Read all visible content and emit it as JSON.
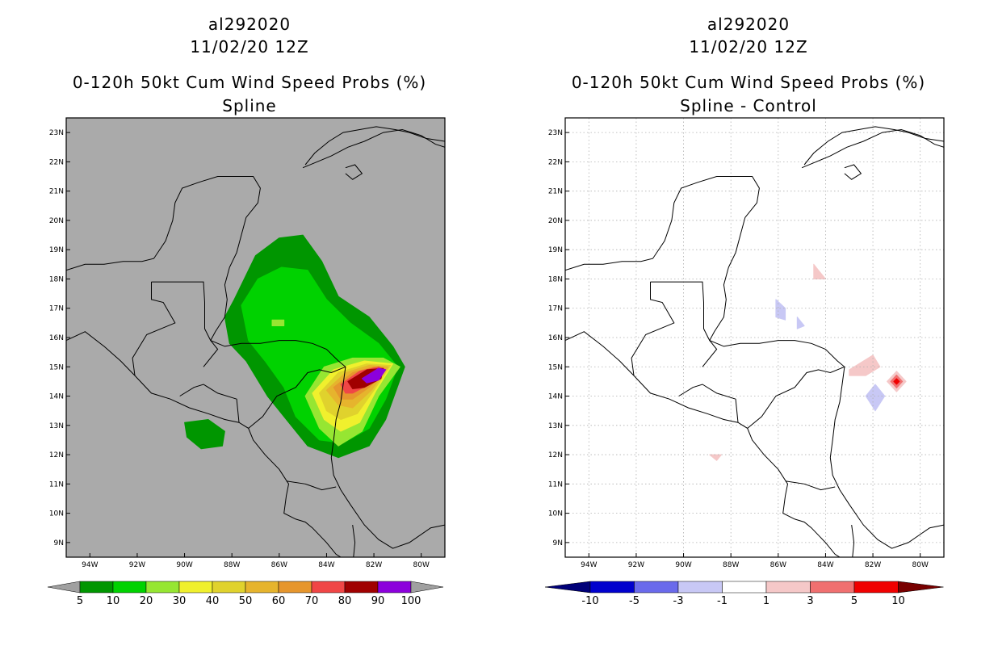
{
  "panels": [
    {
      "id": "spline",
      "storm_id": "al292020",
      "datetime": "11/02/20 12Z",
      "product": "0-120h 50kt Cum Wind Speed Probs (%)",
      "subtitle": "Spline",
      "background": "#aaaaaa",
      "colorbar": {
        "labels": [
          "5",
          "10",
          "20",
          "30",
          "40",
          "50",
          "60",
          "70",
          "80",
          "90",
          "100"
        ],
        "colors": [
          "#009600",
          "#00d200",
          "#96e632",
          "#f0f02d",
          "#e0d22d",
          "#e6b42d",
          "#e6962d",
          "#f04646",
          "#a00000",
          "#8c00dc"
        ],
        "end_color": "#a0a0a0"
      }
    },
    {
      "id": "difference",
      "storm_id": "al292020",
      "datetime": "11/02/20 12Z",
      "product": "0-120h 50kt Cum Wind Speed Probs (%)",
      "subtitle": "Spline - Control",
      "background": "#ffffff",
      "colorbar": {
        "labels": [
          "-10",
          "-5",
          "-3",
          "-1",
          "1",
          "3",
          "5",
          "10"
        ],
        "colors": [
          "#0000cd",
          "#6a6aeb",
          "#c8c8f5",
          "#ffffff",
          "#f5c8c8",
          "#f07070",
          "#f00000"
        ],
        "start_color": "#000078",
        "end_color": "#780000"
      }
    }
  ],
  "chart_data": [
    {
      "type": "heatmap",
      "title": "0-120h 50kt Cum Wind Speed Probs (%) - Spline",
      "xlim": [
        -95,
        -79
      ],
      "ylim": [
        8.5,
        23.5
      ],
      "x_ticks": [
        "94W",
        "92W",
        "90W",
        "88W",
        "86W",
        "84W",
        "82W",
        "80W"
      ],
      "y_ticks": [
        "9N",
        "10N",
        "11N",
        "12N",
        "13N",
        "14N",
        "15N",
        "16N",
        "17N",
        "18N",
        "19N",
        "20N",
        "21N",
        "22N",
        "23N"
      ],
      "contours": [
        {
          "level": 5,
          "color": "#009600",
          "points": [
            [
              -87.9,
              17.3
            ],
            [
              -87.0,
              18.8
            ],
            [
              -86.0,
              19.4
            ],
            [
              -85.0,
              19.5
            ],
            [
              -84.2,
              18.6
            ],
            [
              -83.5,
              17.4
            ],
            [
              -82.2,
              16.7
            ],
            [
              -81.2,
              15.7
            ],
            [
              -80.7,
              15.0
            ],
            [
              -81.1,
              14.1
            ],
            [
              -81.5,
              13.2
            ],
            [
              -82.2,
              12.3
            ],
            [
              -83.5,
              11.9
            ],
            [
              -84.8,
              12.3
            ],
            [
              -85.8,
              13.3
            ],
            [
              -86.5,
              14.0
            ],
            [
              -87.4,
              15.2
            ],
            [
              -88.1,
              15.8
            ],
            [
              -88.3,
              16.7
            ]
          ]
        },
        {
          "level": 10,
          "color": "#00d200",
          "points": [
            [
              -87.6,
              17.1
            ],
            [
              -86.9,
              18.0
            ],
            [
              -85.9,
              18.4
            ],
            [
              -84.8,
              18.3
            ],
            [
              -84.0,
              17.3
            ],
            [
              -83.0,
              16.5
            ],
            [
              -81.8,
              15.8
            ],
            [
              -81.0,
              15.0
            ],
            [
              -81.5,
              13.9
            ],
            [
              -82.2,
              12.9
            ],
            [
              -83.3,
              12.4
            ],
            [
              -84.3,
              12.5
            ],
            [
              -85.3,
              13.3
            ],
            [
              -85.8,
              14.3
            ],
            [
              -86.6,
              15.2
            ],
            [
              -87.3,
              15.9
            ]
          ]
        },
        {
          "level": 20,
          "color": "#96e632",
          "points": [
            [
              -86.3,
              16.4
            ],
            [
              -85.8,
              16.4
            ],
            [
              -85.8,
              16.6
            ],
            [
              -86.3,
              16.6
            ]
          ]
        },
        {
          "level": 5,
          "color": "#009600",
          "points": [
            [
              -90.0,
              13.1
            ],
            [
              -89.0,
              13.2
            ],
            [
              -88.3,
              12.8
            ],
            [
              -88.4,
              12.3
            ],
            [
              -89.3,
              12.2
            ],
            [
              -89.9,
              12.6
            ]
          ]
        },
        {
          "level": 20,
          "color": "#96e632",
          "points": [
            [
              -84.9,
              14.0
            ],
            [
              -84.1,
              15.0
            ],
            [
              -82.9,
              15.3
            ],
            [
              -81.6,
              15.3
            ],
            [
              -80.9,
              15.0
            ],
            [
              -81.8,
              14.0
            ],
            [
              -82.5,
              12.8
            ],
            [
              -83.5,
              12.3
            ],
            [
              -84.3,
              12.9
            ]
          ]
        },
        {
          "level": 30,
          "color": "#f0f02d",
          "points": [
            [
              -84.6,
              14.1
            ],
            [
              -83.7,
              14.9
            ],
            [
              -82.4,
              15.2
            ],
            [
              -81.2,
              15.1
            ],
            [
              -81.9,
              14.2
            ],
            [
              -82.6,
              13.1
            ],
            [
              -83.4,
              12.8
            ],
            [
              -84.1,
              13.2
            ]
          ]
        },
        {
          "level": 40,
          "color": "#e0d22d",
          "points": [
            [
              -84.3,
              14.1
            ],
            [
              -83.5,
              14.8
            ],
            [
              -82.3,
              15.1
            ],
            [
              -81.3,
              15.05
            ],
            [
              -82.0,
              14.2
            ],
            [
              -82.7,
              13.4
            ],
            [
              -83.4,
              13.2
            ],
            [
              -84.0,
              13.5
            ]
          ]
        },
        {
          "level": 50,
          "color": "#e6b42d",
          "points": [
            [
              -84.0,
              14.2
            ],
            [
              -83.2,
              14.8
            ],
            [
              -82.2,
              15.05
            ],
            [
              -81.4,
              15.0
            ],
            [
              -82.1,
              14.2
            ],
            [
              -82.9,
              13.6
            ],
            [
              -83.5,
              13.7
            ]
          ]
        },
        {
          "level": 60,
          "color": "#e6962d",
          "points": [
            [
              -83.7,
              14.3
            ],
            [
              -82.9,
              14.8
            ],
            [
              -82.0,
              15.0
            ],
            [
              -81.5,
              14.9
            ],
            [
              -82.2,
              14.3
            ],
            [
              -82.9,
              13.9
            ],
            [
              -83.4,
              13.9
            ]
          ]
        },
        {
          "level": 70,
          "color": "#f04646",
          "points": [
            [
              -83.4,
              14.4
            ],
            [
              -82.6,
              14.85
            ],
            [
              -81.8,
              15.0
            ],
            [
              -81.5,
              14.9
            ],
            [
              -82.2,
              14.4
            ],
            [
              -82.9,
              14.1
            ],
            [
              -83.2,
              14.1
            ]
          ]
        },
        {
          "level": 80,
          "color": "#a00000",
          "points": [
            [
              -83.1,
              14.5
            ],
            [
              -82.3,
              14.9
            ],
            [
              -81.6,
              14.95
            ],
            [
              -81.7,
              14.6
            ],
            [
              -82.4,
              14.3
            ],
            [
              -82.9,
              14.25
            ]
          ]
        },
        {
          "level": 90,
          "color": "#8c00dc",
          "points": [
            [
              -82.5,
              14.6
            ],
            [
              -81.8,
              14.95
            ],
            [
              -81.5,
              14.9
            ],
            [
              -81.8,
              14.55
            ],
            [
              -82.3,
              14.45
            ]
          ]
        }
      ]
    },
    {
      "type": "heatmap",
      "title": "0-120h 50kt Cum Wind Speed Probs (%) - Spline - Control",
      "xlim": [
        -95,
        -79
      ],
      "ylim": [
        8.5,
        23.5
      ],
      "x_ticks": [
        "94W",
        "92W",
        "90W",
        "88W",
        "86W",
        "84W",
        "82W",
        "80W"
      ],
      "y_ticks": [
        "9N",
        "10N",
        "11N",
        "12N",
        "13N",
        "14N",
        "15N",
        "16N",
        "17N",
        "18N",
        "19N",
        "20N",
        "21N",
        "22N",
        "23N"
      ],
      "contours": [
        {
          "level": 1,
          "color": "#f5c8c8",
          "points": [
            [
              -84.5,
              18.5
            ],
            [
              -84.0,
              18.0
            ],
            [
              -84.5,
              18.0
            ]
          ]
        },
        {
          "level": -1,
          "color": "#c8c8f5",
          "points": [
            [
              -86.1,
              17.3
            ],
            [
              -85.7,
              17.0
            ],
            [
              -85.7,
              16.6
            ],
            [
              -86.1,
              16.7
            ]
          ]
        },
        {
          "level": -1,
          "color": "#c8c8f5",
          "points": [
            [
              -85.2,
              16.7
            ],
            [
              -84.9,
              16.4
            ],
            [
              -85.2,
              16.3
            ]
          ]
        },
        {
          "level": 1,
          "color": "#f5c8c8",
          "points": [
            [
              -83.0,
              14.9
            ],
            [
              -82.0,
              15.4
            ],
            [
              -81.7,
              15.0
            ],
            [
              -82.3,
              14.7
            ],
            [
              -83.0,
              14.7
            ]
          ]
        },
        {
          "level": -1,
          "color": "#c8c8f5",
          "points": [
            [
              -82.3,
              14.0
            ],
            [
              -81.9,
              14.4
            ],
            [
              -81.5,
              14.0
            ],
            [
              -81.9,
              13.5
            ]
          ]
        },
        {
          "level": 1,
          "color": "#f5c8c8",
          "points": [
            [
              -81.4,
              14.5
            ],
            [
              -81.0,
              14.85
            ],
            [
              -80.6,
              14.5
            ],
            [
              -81.0,
              14.15
            ]
          ]
        },
        {
          "level": 3,
          "color": "#f07070",
          "points": [
            [
              -81.25,
              14.5
            ],
            [
              -81.0,
              14.72
            ],
            [
              -80.75,
              14.5
            ],
            [
              -81.0,
              14.28
            ]
          ]
        },
        {
          "level": 5,
          "color": "#f00000",
          "points": [
            [
              -81.12,
              14.5
            ],
            [
              -81.0,
              14.6
            ],
            [
              -80.88,
              14.5
            ],
            [
              -81.0,
              14.4
            ]
          ]
        },
        {
          "level": 1,
          "color": "#f5c8c8",
          "points": [
            [
              -88.9,
              12.0
            ],
            [
              -88.4,
              12.0
            ],
            [
              -88.6,
              11.8
            ]
          ]
        }
      ]
    }
  ]
}
